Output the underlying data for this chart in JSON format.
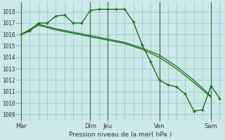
{
  "background_color": "#cce8e8",
  "grid_color": "#99cccc",
  "line_color": "#1a6e1a",
  "title": "Pression niveau de la mer( hPa )",
  "yticks": [
    1009,
    1010,
    1011,
    1012,
    1013,
    1014,
    1015,
    1016,
    1017,
    1018
  ],
  "ylim": [
    1008.5,
    1018.8
  ],
  "xlim": [
    -4,
    280
  ],
  "xtick_labels": [
    "Mar",
    "Dim",
    "Jeu",
    "Ven",
    "Sam"
  ],
  "xtick_positions": [
    0,
    96,
    120,
    192,
    264
  ],
  "vlines": [
    0,
    96,
    120,
    192,
    264
  ],
  "series1": {
    "x": [
      0,
      12,
      24,
      36,
      48,
      60,
      72,
      84,
      96,
      108,
      120,
      132,
      144,
      156,
      168,
      180,
      192,
      204,
      216,
      228,
      240,
      252,
      264,
      276
    ],
    "y": [
      1016.0,
      1016.3,
      1017.0,
      1017.0,
      1017.6,
      1017.7,
      1017.0,
      1017.0,
      1018.1,
      1018.2,
      1018.2,
      1018.2,
      1018.2,
      1017.1,
      1015.1,
      1013.6,
      1012.0,
      1011.6,
      1011.4,
      1010.8,
      1009.3,
      1009.4,
      1011.5,
      1010.4
    ]
  },
  "series2": {
    "x": [
      0,
      24,
      48,
      72,
      96,
      120,
      144,
      168,
      192,
      216,
      240,
      264
    ],
    "y": [
      1016.0,
      1016.8,
      1016.4,
      1016.1,
      1015.8,
      1015.5,
      1015.2,
      1014.7,
      1014.0,
      1013.0,
      1011.8,
      1010.5
    ]
  },
  "series3": {
    "x": [
      0,
      24,
      48,
      72,
      96,
      120,
      144,
      168,
      192,
      216,
      240,
      264
    ],
    "y": [
      1016.0,
      1016.9,
      1016.5,
      1016.2,
      1015.9,
      1015.6,
      1015.3,
      1014.8,
      1014.2,
      1013.2,
      1012.0,
      1010.6
    ]
  }
}
